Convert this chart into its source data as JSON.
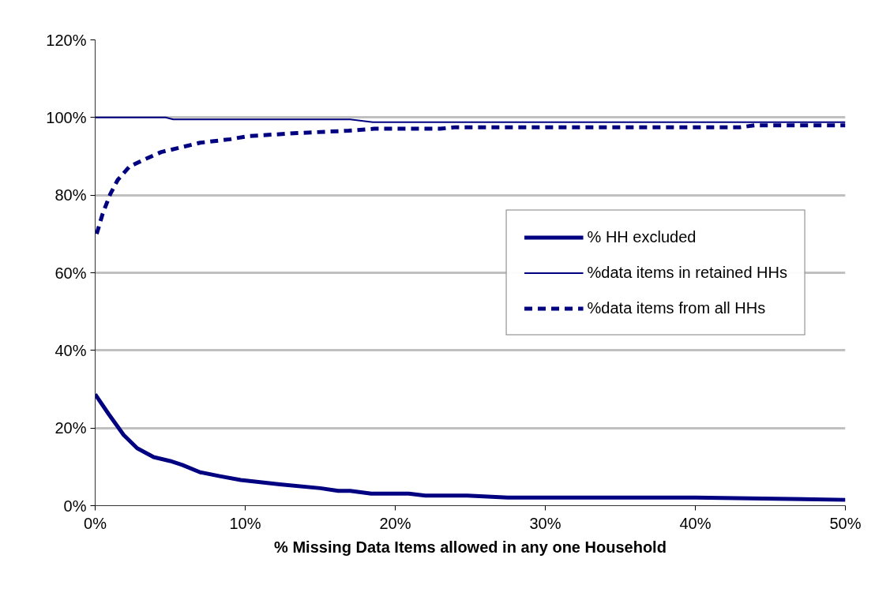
{
  "chart_data": {
    "type": "line",
    "xlabel": "% Missing Data Items allowed in any one Household",
    "xlim": [
      0,
      50
    ],
    "xticks": [
      {
        "value": 0,
        "label": "0%"
      },
      {
        "value": 10,
        "label": "10%"
      },
      {
        "value": 20,
        "label": "20%"
      },
      {
        "value": 30,
        "label": "30%"
      },
      {
        "value": 40,
        "label": "40%"
      },
      {
        "value": 50,
        "label": "50%"
      }
    ],
    "ylim": [
      0,
      120
    ],
    "yticks": [
      {
        "value": 0,
        "label": "0%"
      },
      {
        "value": 20,
        "label": "20%"
      },
      {
        "value": 40,
        "label": "40%"
      },
      {
        "value": 60,
        "label": "60%"
      },
      {
        "value": 80,
        "label": "80%"
      },
      {
        "value": 100,
        "label": "100%"
      },
      {
        "value": 120,
        "label": "120%"
      }
    ],
    "grid": "y",
    "legend": "right",
    "marker": "none",
    "series": [
      {
        "name": "% HH excluded",
        "color": "#000080",
        "line_style": "solid",
        "x": [
          0,
          0.9,
          1.9,
          2.8,
          3.9,
          5.0,
          5.8,
          7.0,
          8.3,
          9.7,
          12.3,
          15.0,
          16.2,
          17.0,
          18.4,
          20.9,
          22.0,
          24.8,
          27.5,
          40,
          50
        ],
        "values": [
          28.7,
          23.6,
          18.2,
          14.8,
          12.5,
          11.5,
          10.5,
          8.6,
          7.6,
          6.6,
          5.5,
          4.5,
          3.8,
          3.8,
          3.1,
          3.1,
          2.6,
          2.6,
          2.1,
          2.1,
          1.5
        ]
      },
      {
        "name": "%data items in retained HHs",
        "color": "#000080",
        "line_style": "solid",
        "x": [
          0,
          4.7,
          5.2,
          17.0,
          18.5,
          50
        ],
        "values": [
          100,
          100,
          99.5,
          99.5,
          98.8,
          98.8
        ]
      },
      {
        "name": "%data items from all HHs",
        "color": "#000080",
        "line_style": "dashed",
        "x": [
          0.1,
          0.5,
          1.0,
          1.5,
          2.3,
          3.4,
          4.4,
          5.5,
          7.0,
          9.0,
          10.2,
          13.5,
          16.9,
          18.6,
          23.0,
          24.0,
          43.0,
          44.0,
          50
        ],
        "values": [
          70.0,
          75.2,
          80.2,
          83.9,
          87.4,
          89.4,
          91.1,
          92.1,
          93.5,
          94.4,
          95.2,
          96.0,
          96.6,
          97.1,
          97.1,
          97.5,
          97.5,
          98.0,
          98.0
        ]
      }
    ]
  }
}
